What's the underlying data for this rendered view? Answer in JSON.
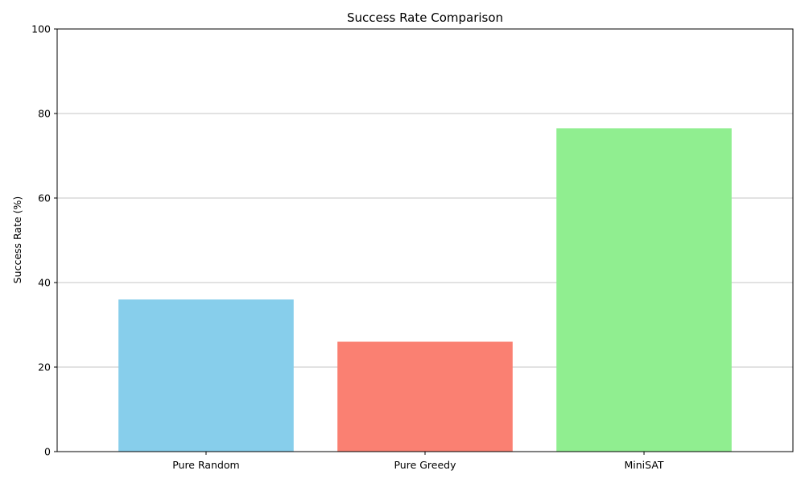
{
  "chart_data": {
    "type": "bar",
    "title": "Success Rate Comparison",
    "xlabel": "",
    "ylabel": "Success Rate (%)",
    "categories": [
      "Pure Random",
      "Pure Greedy",
      "MiniSAT"
    ],
    "values": [
      36,
      26,
      76.5
    ],
    "colors": [
      "#87ceeb",
      "#fa8072",
      "#90ee90"
    ],
    "ylim": [
      0,
      100
    ],
    "yticks": [
      0,
      20,
      40,
      60,
      80,
      100
    ],
    "grid": "horizontal",
    "legend": "none"
  }
}
